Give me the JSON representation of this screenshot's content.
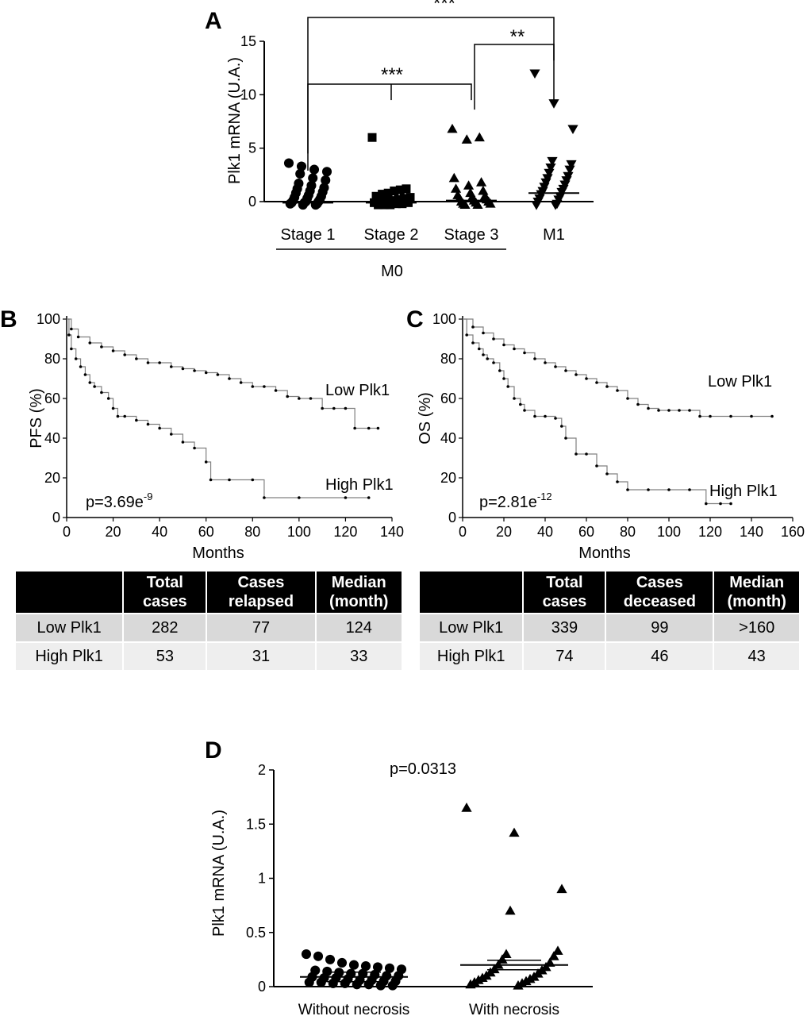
{
  "panels": {
    "a": {
      "letter": "A"
    },
    "b": {
      "letter": "B"
    },
    "c": {
      "letter": "C"
    },
    "d": {
      "letter": "D"
    }
  },
  "panel_a_extra": {
    "group_label": "M0",
    "significance": [
      {
        "from": "Stage 1",
        "to": "M1",
        "label": "***"
      },
      {
        "from": "Stage 3",
        "to": "M1",
        "label": "**"
      },
      {
        "from": "Stage 1",
        "to": "Stage 3",
        "label": "***"
      }
    ]
  },
  "table_b": {
    "headers": [
      "",
      "Total\ncases",
      "Cases\nrelapsed",
      "Median\n(month)"
    ],
    "rows": [
      [
        "Low Plk1",
        "282",
        "77",
        "124"
      ],
      [
        "High Plk1",
        "53",
        "31",
        "33"
      ]
    ]
  },
  "table_c": {
    "headers": [
      "",
      "Total\ncases",
      "Cases\ndeceased",
      "Median\n(month)"
    ],
    "rows": [
      [
        "Low Plk1",
        "339",
        "99",
        ">160"
      ],
      [
        "High Plk1",
        "74",
        "46",
        "43"
      ]
    ]
  },
  "chart_data": [
    {
      "type": "scatter",
      "id": "A",
      "ylabel": "Plk1 mRNA (U.A.)",
      "ylim": [
        0,
        15
      ],
      "yticks": [
        0,
        5,
        10,
        15
      ],
      "categories": [
        "Stage 1",
        "Stage 2",
        "Stage 3",
        "M1"
      ],
      "markers": [
        "circle",
        "square",
        "triangle-up",
        "triangle-down"
      ],
      "means": [
        -0.1,
        -0.1,
        0.1,
        0.8
      ],
      "series": [
        {
          "values": [
            3.6,
            3.3,
            3.0,
            2.8,
            2.6,
            2.2,
            2.0,
            1.7,
            1.5,
            1.3,
            1.2,
            1.0,
            0.9,
            0.8,
            0.6,
            0.5,
            0.4,
            0.3,
            0.2,
            0.1,
            0.0,
            0.0,
            -0.1,
            -0.1,
            -0.2,
            -0.2,
            -0.3,
            -0.3
          ]
        },
        {
          "values": [
            6.0,
            1.2,
            1.1,
            1.0,
            0.8,
            0.7,
            0.5,
            0.4,
            0.3,
            0.2,
            0.1,
            0.0,
            0.0,
            -0.1,
            -0.1,
            -0.2,
            -0.2,
            -0.3,
            -0.3,
            -0.3
          ]
        },
        {
          "values": [
            6.8,
            6.0,
            5.8,
            2.2,
            1.8,
            1.5,
            1.2,
            1.0,
            0.8,
            0.6,
            0.5,
            0.4,
            0.3,
            0.2,
            0.1,
            0.0,
            0.0,
            -0.1,
            -0.2,
            -0.2,
            -0.3,
            -0.3
          ]
        },
        {
          "values": [
            12.0,
            9.2,
            6.8,
            3.8,
            3.5,
            3.2,
            3.0,
            2.7,
            2.4,
            2.2,
            2.0,
            1.8,
            1.6,
            1.4,
            1.2,
            1.0,
            0.9,
            0.7,
            0.5,
            0.3,
            0.2,
            0.0,
            -0.2,
            -0.3,
            -0.3
          ]
        }
      ]
    },
    {
      "type": "line",
      "id": "B",
      "xlabel": "Months",
      "ylabel": "PFS (%)",
      "xlim": [
        0,
        140
      ],
      "ylim": [
        0,
        100
      ],
      "xticks": [
        0,
        20,
        40,
        60,
        80,
        100,
        120,
        140
      ],
      "yticks": [
        0,
        20,
        40,
        60,
        80,
        100
      ],
      "annotation_base": "p=3.69e",
      "annotation_exp": "-9",
      "series": [
        {
          "name": "Low Plk1",
          "x": [
            0,
            2,
            5,
            10,
            15,
            20,
            25,
            30,
            35,
            40,
            45,
            50,
            55,
            60,
            65,
            70,
            75,
            80,
            85,
            90,
            95,
            100,
            105,
            110,
            115,
            120,
            124,
            130,
            134
          ],
          "y": [
            100,
            95,
            91,
            88,
            86,
            84,
            82,
            80,
            78,
            78,
            76,
            75,
            74,
            73,
            72,
            70,
            68,
            66,
            66,
            64,
            61,
            60,
            60,
            55,
            55,
            55,
            45,
            45,
            45
          ]
        },
        {
          "name": "High Plk1",
          "x": [
            0,
            1,
            2,
            4,
            6,
            8,
            10,
            12,
            15,
            18,
            20,
            22,
            25,
            30,
            35,
            40,
            45,
            50,
            55,
            60,
            62,
            70,
            80,
            85,
            100,
            120,
            130
          ],
          "y": [
            100,
            92,
            85,
            80,
            76,
            72,
            68,
            66,
            63,
            60,
            55,
            51,
            51,
            49,
            47,
            45,
            42,
            38,
            35,
            28,
            19,
            19,
            19,
            10,
            10,
            10,
            10
          ]
        }
      ]
    },
    {
      "type": "line",
      "id": "C",
      "xlabel": "Months",
      "ylabel": "OS (%)",
      "xlim": [
        0,
        160
      ],
      "ylim": [
        0,
        100
      ],
      "xticks": [
        0,
        20,
        40,
        60,
        80,
        100,
        120,
        140,
        160
      ],
      "yticks": [
        0,
        20,
        40,
        60,
        80,
        100
      ],
      "annotation_base": "p=2.81e",
      "annotation_exp": "-12",
      "series": [
        {
          "name": "Low Plk1",
          "x": [
            0,
            5,
            10,
            15,
            20,
            25,
            30,
            35,
            40,
            45,
            50,
            55,
            60,
            65,
            70,
            75,
            80,
            85,
            90,
            95,
            100,
            105,
            110,
            115,
            120,
            130,
            140,
            150
          ],
          "y": [
            100,
            96,
            93,
            90,
            87,
            85,
            83,
            80,
            78,
            76,
            74,
            72,
            70,
            68,
            66,
            64,
            60,
            57,
            55,
            54,
            54,
            54,
            54,
            51,
            51,
            51,
            51,
            51
          ]
        },
        {
          "name": "High Plk1",
          "x": [
            0,
            2,
            5,
            8,
            10,
            12,
            15,
            18,
            20,
            22,
            25,
            28,
            30,
            35,
            40,
            45,
            48,
            50,
            55,
            60,
            65,
            70,
            75,
            80,
            90,
            100,
            110,
            118,
            125,
            130
          ],
          "y": [
            100,
            92,
            88,
            85,
            82,
            80,
            78,
            74,
            70,
            66,
            60,
            57,
            54,
            51,
            51,
            50,
            46,
            40,
            32,
            32,
            26,
            22,
            18,
            14,
            14,
            14,
            14,
            7,
            7,
            7
          ]
        }
      ]
    },
    {
      "type": "scatter",
      "id": "D",
      "ylabel": "Plk1 mRNA (U.A.)",
      "ylim": [
        0,
        2
      ],
      "yticks": [
        0,
        0.5,
        1,
        1.5,
        2
      ],
      "categories": [
        "Without necrosis",
        "With necrosis"
      ],
      "markers": [
        "circle",
        "triangle-up"
      ],
      "annotation": "p=0.0313",
      "means": [
        0.09,
        0.2
      ],
      "series": [
        {
          "values": [
            0.3,
            0.28,
            0.25,
            0.22,
            0.2,
            0.19,
            0.18,
            0.17,
            0.16,
            0.15,
            0.14,
            0.13,
            0.12,
            0.12,
            0.11,
            0.1,
            0.1,
            0.09,
            0.08,
            0.08,
            0.07,
            0.06,
            0.06,
            0.05,
            0.05,
            0.04,
            0.04,
            0.03,
            0.03,
            0.02,
            0.02,
            0.01,
            0.01
          ]
        },
        {
          "values": [
            1.65,
            1.42,
            0.9,
            0.7,
            0.33,
            0.3,
            0.28,
            0.25,
            0.22,
            0.2,
            0.18,
            0.16,
            0.15,
            0.13,
            0.12,
            0.1,
            0.09,
            0.08,
            0.07,
            0.06,
            0.05,
            0.04,
            0.03,
            0.02,
            0.01
          ]
        }
      ]
    }
  ]
}
